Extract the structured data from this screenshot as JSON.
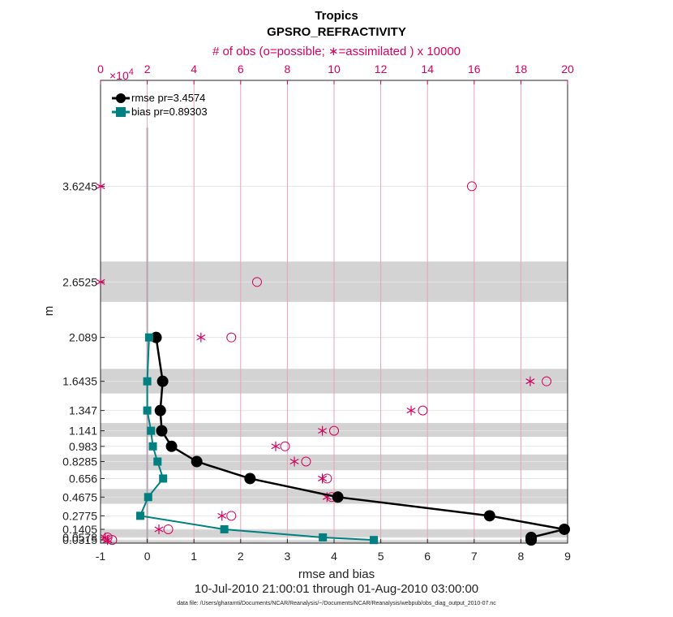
{
  "chart_data": {
    "type": "line",
    "title": "Tropics",
    "subtitle": "GPSRO_REFRACTIVITY",
    "top_axis_label": "# of obs (o=possible; ∗=assimilated ) x 10000",
    "top_axis_exponent_base": "×10",
    "top_axis_exponent_power": "4",
    "top_axis_range": [
      0,
      20
    ],
    "top_ticks": [
      "0",
      "2",
      "4",
      "6",
      "8",
      "10",
      "12",
      "14",
      "16",
      "18",
      "20"
    ],
    "xlabel": "rmse and bias",
    "xlim": [
      -1,
      9
    ],
    "x_ticks": [
      "-1",
      "0",
      "1",
      "2",
      "3",
      "4",
      "5",
      "6",
      "7",
      "8",
      "9"
    ],
    "ylabel": "m",
    "y_levels": [
      0.0315,
      0.0578,
      0.1405,
      0.2775,
      0.4675,
      0.656,
      0.8285,
      0.983,
      1.141,
      1.347,
      1.6435,
      2.089,
      2.6525,
      3.6245
    ],
    "y_tick_labels": [
      "0.0315",
      "0.0578",
      "0.1405",
      "0.2775",
      "0.4675",
      "0.656",
      "0.8285",
      "0.983",
      "1.141",
      "1.347",
      "1.6435",
      "2.089",
      "2.6525",
      "3.6245"
    ],
    "shaded_bands": [
      [
        0.0,
        0.0315
      ],
      [
        0.0578,
        0.1405
      ],
      [
        0.4,
        0.55
      ],
      [
        0.74,
        0.9
      ],
      [
        1.08,
        1.22
      ],
      [
        1.52,
        1.77
      ],
      [
        2.45,
        2.86
      ]
    ],
    "series": [
      {
        "name": "rmse pr=3.4574",
        "color": "#000000",
        "x": [
          8.22,
          8.22,
          8.93,
          7.33,
          4.08,
          2.2,
          1.06,
          0.52,
          0.31,
          0.28,
          0.33,
          0.19
        ],
        "y": [
          0.0315,
          0.0578,
          0.1405,
          0.2775,
          0.4675,
          0.656,
          0.8285,
          0.983,
          1.141,
          1.347,
          1.6435,
          2.089
        ]
      },
      {
        "name": "bias pr=0.89303",
        "color": "#008080",
        "x": [
          4.85,
          3.76,
          1.65,
          -0.15,
          0.02,
          0.34,
          0.22,
          0.12,
          0.08,
          0.0,
          0.0,
          0.04
        ],
        "y": [
          0.0315,
          0.0578,
          0.1405,
          0.2775,
          0.4675,
          0.656,
          0.8285,
          0.983,
          1.141,
          1.347,
          1.6435,
          2.089
        ]
      }
    ],
    "obs_possible_x1e4": [
      0.5,
      0.3,
      2.9,
      5.6,
      9.9,
      9.7,
      8.8,
      7.9,
      10.0,
      13.8,
      19.1,
      5.6,
      6.7,
      15.9
    ],
    "obs_assimilated_x1e4": [
      0.3,
      0.2,
      2.5,
      5.2,
      9.7,
      9.5,
      8.3,
      7.5,
      9.5,
      13.3,
      18.4,
      4.3,
      0.0,
      0.0
    ],
    "obs_y": [
      0.0315,
      0.0578,
      0.1405,
      0.2775,
      0.4675,
      0.656,
      0.8285,
      0.983,
      1.141,
      1.347,
      1.6435,
      2.089,
      2.6525,
      3.6245
    ],
    "date_range": "10-Jul-2010 21:00:01 through 01-Aug-2010 03:00:00",
    "data_file": "data file: /Users/gharamti/Documents/NCAR/Reanalysis/~/Documents/NCAR/Reanalysis/webpub/obs_diag_output_2010-07.nc"
  }
}
